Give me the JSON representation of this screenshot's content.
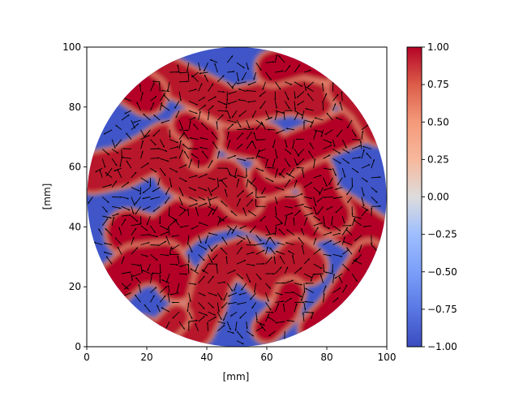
{
  "chart_data": {
    "type": "heatmap",
    "title": "",
    "xlabel": "[mm]",
    "ylabel": "[mm]",
    "xlim": [
      0,
      100
    ],
    "ylim": [
      0,
      100
    ],
    "xticks": [
      "0",
      "20",
      "40",
      "60",
      "80",
      "100"
    ],
    "yticks": [
      "0",
      "20",
      "40",
      "60",
      "80",
      "100"
    ],
    "domain": {
      "shape": "circle",
      "center": [
        50,
        50
      ],
      "radius": 50
    },
    "colormap": "coolwarm",
    "colorbar": {
      "range": [
        -1.0,
        1.0
      ],
      "ticks": [
        "1.00",
        "0.75",
        "0.50",
        "0.25",
        "0.00",
        "−0.25",
        "−0.50",
        "−0.75",
        "−1.00"
      ],
      "tick_values": [
        1.0,
        0.75,
        0.5,
        0.25,
        0.0,
        -0.25,
        -0.5,
        -0.75,
        -1.0
      ]
    },
    "field_overlay": "quiver",
    "grid": false,
    "high_regions": [
      {
        "path": [
          [
            14,
            38
          ],
          [
            24,
            35
          ],
          [
            32,
            42
          ],
          [
            40,
            46
          ],
          [
            50,
            48
          ],
          [
            62,
            44
          ],
          [
            72,
            42
          ],
          [
            82,
            45
          ],
          [
            90,
            40
          ],
          [
            96,
            36
          ]
        ],
        "width": 7.5
      },
      {
        "path": [
          [
            2,
            58
          ],
          [
            12,
            60
          ],
          [
            20,
            64
          ],
          [
            26,
            68
          ],
          [
            30,
            58
          ],
          [
            36,
            55
          ],
          [
            46,
            56
          ],
          [
            52,
            50
          ]
        ],
        "width": 6.5
      },
      {
        "path": [
          [
            60,
            56
          ],
          [
            70,
            60
          ],
          [
            76,
            58
          ],
          [
            78,
            50
          ],
          [
            82,
            44
          ]
        ],
        "width": 6.0
      },
      {
        "path": [
          [
            50,
            70
          ],
          [
            60,
            68
          ],
          [
            64,
            62
          ],
          [
            70,
            66
          ],
          [
            80,
            70
          ],
          [
            90,
            74
          ]
        ],
        "width": 6.0
      },
      {
        "path": [
          [
            26,
            91
          ],
          [
            36,
            86
          ],
          [
            48,
            80
          ],
          [
            58,
            82
          ],
          [
            68,
            84
          ],
          [
            76,
            82
          ]
        ],
        "width": 6.0
      },
      {
        "path": [
          [
            62,
            93
          ],
          [
            72,
            96
          ],
          [
            82,
            94
          ],
          [
            90,
            88
          ]
        ],
        "width": 5.5
      },
      {
        "path": [
          [
            14,
            88
          ],
          [
            20,
            84
          ]
        ],
        "width": 6.5
      },
      {
        "path": [
          [
            85,
            86
          ],
          [
            92,
            80
          ],
          [
            97,
            72
          ]
        ],
        "width": 4.5
      },
      {
        "path": [
          [
            33,
            74
          ],
          [
            40,
            70
          ],
          [
            38,
            64
          ]
        ],
        "width": 4.5
      },
      {
        "path": [
          [
            8,
            20
          ],
          [
            16,
            27
          ],
          [
            26,
            28
          ],
          [
            30,
            22
          ]
        ],
        "width": 6.5
      },
      {
        "path": [
          [
            36,
            6
          ],
          [
            40,
            14
          ],
          [
            42,
            22
          ],
          [
            46,
            28
          ],
          [
            52,
            30
          ],
          [
            56,
            26
          ],
          [
            60,
            22
          ],
          [
            66,
            26
          ],
          [
            70,
            30
          ],
          [
            74,
            27
          ]
        ],
        "width": 6.0
      },
      {
        "path": [
          [
            60,
            6
          ],
          [
            66,
            12
          ],
          [
            68,
            18
          ]
        ],
        "width": 4.5
      },
      {
        "path": [
          [
            76,
            6
          ],
          [
            82,
            12
          ],
          [
            86,
            18
          ],
          [
            90,
            24
          ],
          [
            94,
            30
          ]
        ],
        "width": 5.0
      },
      {
        "path": [
          [
            18,
            6
          ],
          [
            24,
            4
          ],
          [
            30,
            10
          ]
        ],
        "width": 4.0
      }
    ]
  }
}
